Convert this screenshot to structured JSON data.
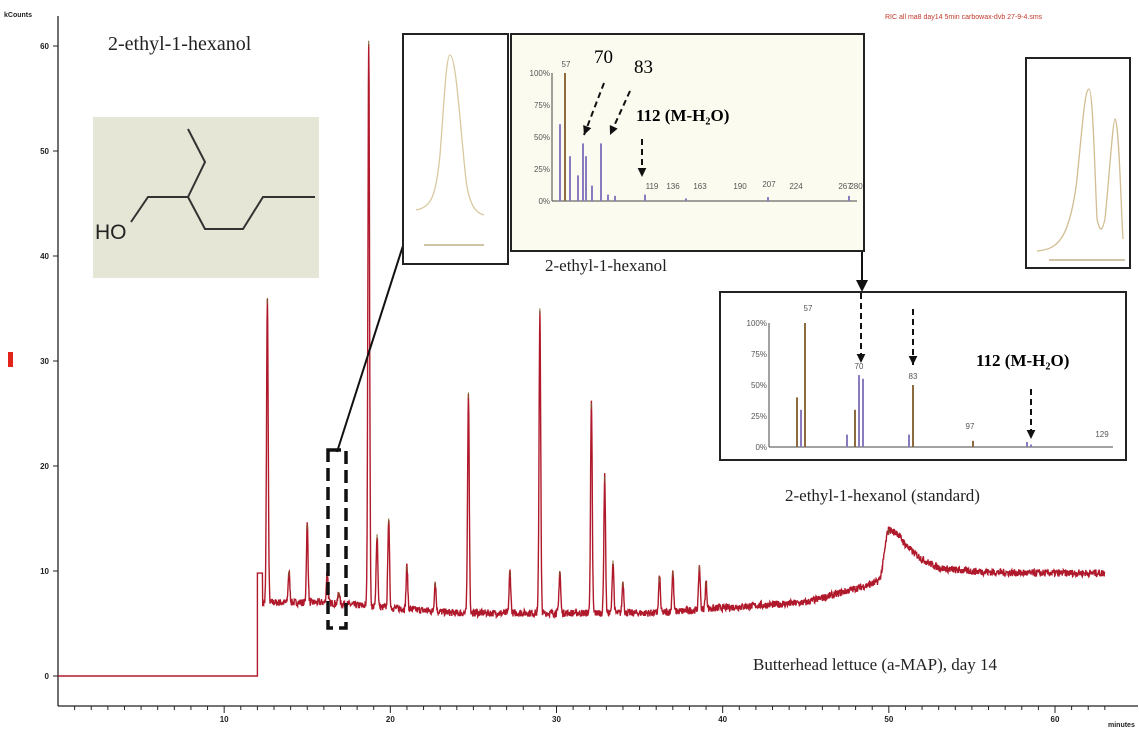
{
  "header": {
    "y_unit": "kCounts",
    "file_label": "RIC all ma8 day14 5min carbowax-dvb 27-9-4.sms",
    "x_unit": "minutes"
  },
  "labels": {
    "compound": "2-ethyl-1-hexanol",
    "ho": "HO",
    "sample_compound": "2-ethyl-1-hexanol",
    "standard_compound": "2-ethyl-1-hexanol (standard)",
    "sample": "Butterhead lettuce (a-MAP), day 14"
  },
  "ms_sample": {
    "ion_70": "70",
    "ion_83": "83",
    "ion_112": "112 (M-H₂O)",
    "tick_labels": [
      "57",
      "119",
      "136",
      "163",
      "190",
      "207",
      "224",
      "267",
      "280"
    ],
    "y_ticks": [
      "100%",
      "75%",
      "50%",
      "25%",
      "0%"
    ]
  },
  "ms_standard": {
    "ion_112": "112 (M-H₂O)",
    "tick_labels": [
      "57",
      "70",
      "83",
      "97",
      "129"
    ],
    "y_ticks": [
      "100%",
      "75%",
      "50%",
      "25%",
      "0%"
    ]
  },
  "colors": {
    "trace": "#b0192b",
    "trace_dark": "#7a5a2a",
    "structure_bg": "#e6e6d6",
    "inset_bg": "#fbfbf0",
    "ms_bar_brown": "#8c6c3e",
    "ms_bar_purple": "#8a7ac0"
  },
  "chart_data": {
    "type": "line",
    "title": "",
    "xlabel": "minutes",
    "ylabel": "kCounts",
    "xlim": [
      0,
      63
    ],
    "ylim": [
      -2,
      62
    ],
    "x_ticks": [
      10,
      20,
      30,
      40,
      50,
      60
    ],
    "y_ticks": [
      0,
      10,
      20,
      30,
      40,
      50,
      60
    ],
    "grid": false,
    "baseline": [
      [
        0,
        0
      ],
      [
        12.0,
        0
      ],
      [
        12.05,
        6
      ],
      [
        12.3,
        7
      ]
    ],
    "peaks": [
      {
        "x": 12.6,
        "y": 36
      },
      {
        "x": 13.9,
        "y": 10
      },
      {
        "x": 15.0,
        "y": 14.5
      },
      {
        "x": 16.2,
        "y": 10
      },
      {
        "x": 16.9,
        "y": 8
      },
      {
        "x": 18.7,
        "y": 60.5
      },
      {
        "x": 19.2,
        "y": 13.5
      },
      {
        "x": 19.9,
        "y": 15
      },
      {
        "x": 21.0,
        "y": 10.5
      },
      {
        "x": 22.7,
        "y": 9
      },
      {
        "x": 24.7,
        "y": 27
      },
      {
        "x": 27.2,
        "y": 10
      },
      {
        "x": 29.0,
        "y": 35
      },
      {
        "x": 30.2,
        "y": 10
      },
      {
        "x": 32.1,
        "y": 26
      },
      {
        "x": 32.9,
        "y": 19
      },
      {
        "x": 33.4,
        "y": 11
      },
      {
        "x": 34.0,
        "y": 9
      },
      {
        "x": 36.2,
        "y": 9.5
      },
      {
        "x": 37.0,
        "y": 10
      },
      {
        "x": 38.6,
        "y": 10.5
      },
      {
        "x": 39.0,
        "y": 9
      },
      {
        "x": 50.0,
        "y": 14
      }
    ],
    "background": [
      [
        12.3,
        7
      ],
      [
        16,
        7
      ],
      [
        20,
        6.5
      ],
      [
        24,
        6
      ],
      [
        30,
        6
      ],
      [
        36,
        6
      ],
      [
        40,
        6.5
      ],
      [
        45,
        7
      ],
      [
        49.5,
        9
      ],
      [
        50.5,
        11
      ],
      [
        53,
        10
      ],
      [
        58,
        9.8
      ],
      [
        63,
        9.8
      ]
    ]
  }
}
